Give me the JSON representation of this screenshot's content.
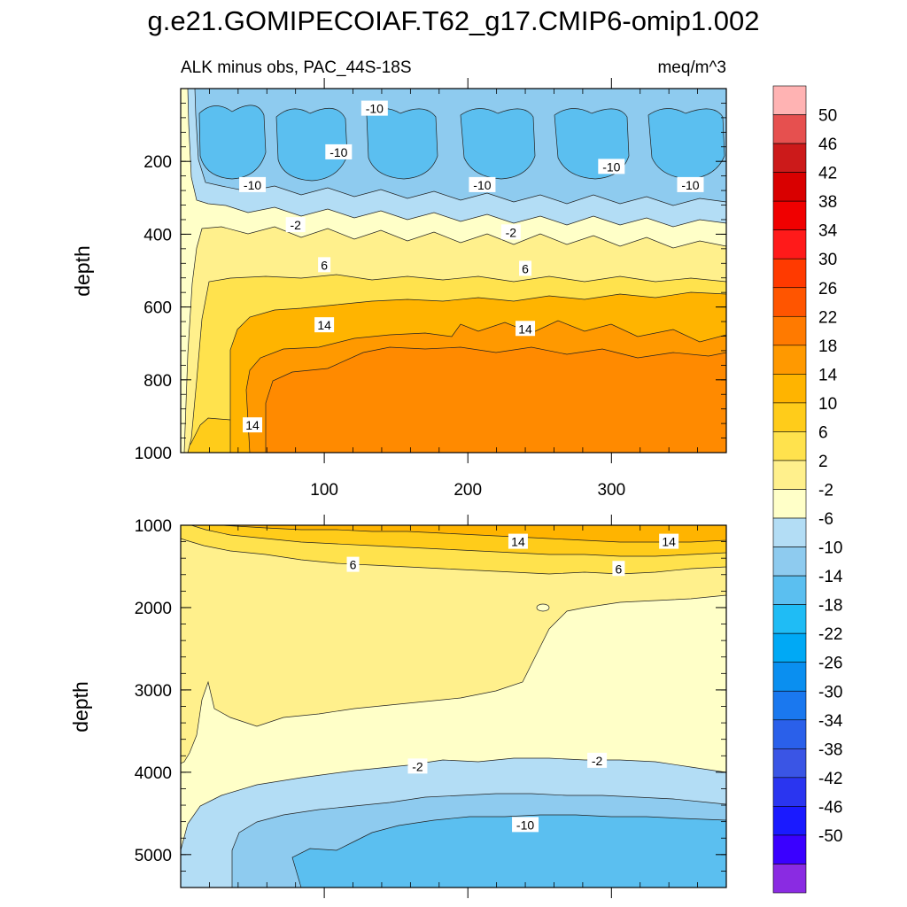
{
  "chart_data": {
    "type": "contour",
    "title": "g.e21.GOMIPECOIAF.T62_g17.CMIP6-omip1.002",
    "subtitle_left": "ALK minus obs, PAC_44S-18S",
    "subtitle_right": "meq/m^3",
    "xlabel": "",
    "xticks": [
      "100",
      "200",
      "300"
    ],
    "xtick_values": [
      100,
      200,
      300
    ],
    "xlim": [
      0,
      380
    ],
    "panels": [
      {
        "name": "upper",
        "ylabel": "depth",
        "ylim": [
          0,
          1000
        ],
        "yticks": [
          "200",
          "400",
          "600",
          "800",
          "1000"
        ],
        "ytick_values": [
          200,
          400,
          600,
          800,
          1000
        ],
        "contour_labels": [
          {
            "text": "-10",
            "x": 135,
            "y": 55
          },
          {
            "text": "-10",
            "x": 110,
            "y": 175
          },
          {
            "text": "-10",
            "x": 50,
            "y": 265
          },
          {
            "text": "-10",
            "x": 210,
            "y": 265
          },
          {
            "text": "-10",
            "x": 300,
            "y": 215
          },
          {
            "text": "-10",
            "x": 355,
            "y": 265
          },
          {
            "text": "-2",
            "x": 80,
            "y": 375
          },
          {
            "text": "-2",
            "x": 230,
            "y": 395
          },
          {
            "text": "6",
            "x": 100,
            "y": 485
          },
          {
            "text": "6",
            "x": 240,
            "y": 495
          },
          {
            "text": "14",
            "x": 100,
            "y": 650
          },
          {
            "text": "14",
            "x": 240,
            "y": 660
          },
          {
            "text": "14",
            "x": 50,
            "y": 925
          }
        ]
      },
      {
        "name": "lower",
        "ylabel": "depth",
        "ylim": [
          1000,
          5400
        ],
        "yticks": [
          "1000",
          "2000",
          "3000",
          "4000",
          "5000"
        ],
        "ytick_values": [
          1000,
          2000,
          3000,
          4000,
          5000
        ],
        "contour_labels": [
          {
            "text": "14",
            "x": 235,
            "y": 1200
          },
          {
            "text": "14",
            "x": 340,
            "y": 1200
          },
          {
            "text": "6",
            "x": 120,
            "y": 1480
          },
          {
            "text": "6",
            "x": 305,
            "y": 1530
          },
          {
            "text": "-2",
            "x": 165,
            "y": 3930
          },
          {
            "text": "-2",
            "x": 290,
            "y": 3860
          },
          {
            "text": "-10",
            "x": 240,
            "y": 4640
          }
        ]
      }
    ],
    "colorbar": {
      "labels": [
        "50",
        "46",
        "42",
        "38",
        "34",
        "30",
        "26",
        "22",
        "18",
        "14",
        "10",
        "6",
        "2",
        "-2",
        "-6",
        "-10",
        "-14",
        "-18",
        "-22",
        "-26",
        "-30",
        "-34",
        "-38",
        "-42",
        "-46",
        "-50"
      ],
      "colors": [
        "#ffb3b3",
        "#e6504f",
        "#cc1a1a",
        "#d90000",
        "#f00000",
        "#ff1a1a",
        "#ff3a00",
        "#ff5500",
        "#ff7a00",
        "#ff9900",
        "#ffb400",
        "#ffcc1a",
        "#ffe24d",
        "#fff08c",
        "#ffffc8",
        "#b3ddf5",
        "#8ecbef",
        "#5bbff0",
        "#1fbcf5",
        "#00a9f5",
        "#0a8ff0",
        "#1a78ef",
        "#2a60ea",
        "#3a55e5",
        "#2a35f0",
        "#1a1aff",
        "#3a00ff",
        "#8a2be2"
      ]
    },
    "field_colors": {
      "minus_14": "#5bbff0",
      "minus_10": "#8ecbef",
      "minus_6": "#b3ddf5",
      "minus_2": "#ffffc8",
      "plus_2": "#fff08c",
      "plus_6": "#ffe24d",
      "plus_10": "#ffcc1a",
      "plus_14": "#ffb400",
      "plus_18": "#ff9900"
    }
  }
}
